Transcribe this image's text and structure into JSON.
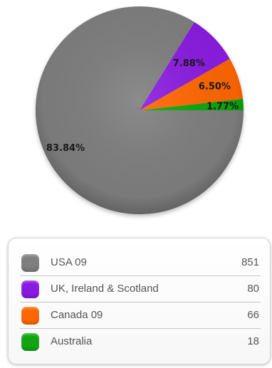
{
  "chart_data": {
    "type": "pie",
    "start": "right, counter-clockwise",
    "slices": [
      {
        "name": "USA 09",
        "value": 851,
        "percent_label": "83.84%",
        "color": "#7f7f7f"
      },
      {
        "name": "UK, Ireland & Scotland",
        "value": 80,
        "percent_label": "7.88%",
        "color": "#8a1ae0"
      },
      {
        "name": "Canada 09",
        "value": 66,
        "percent_label": "6.50%",
        "color": "#ff6600"
      },
      {
        "name": "Australia",
        "value": 18,
        "percent_label": "1.77%",
        "color": "#11a511"
      }
    ],
    "legend": {
      "placement": "bottom",
      "items": [
        {
          "label": "USA 09",
          "value": "851",
          "color": "#7f7f7f"
        },
        {
          "label": "UK, Ireland & Scotland",
          "value": "80",
          "color": "#8a1ae0"
        },
        {
          "label": "Canada 09",
          "value": "66",
          "color": "#ff6600"
        },
        {
          "label": "Australia",
          "value": "18",
          "color": "#11a511"
        }
      ]
    }
  }
}
